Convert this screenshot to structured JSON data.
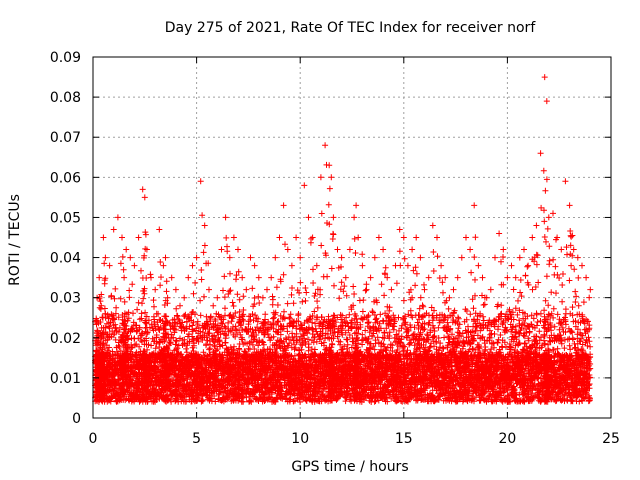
{
  "chart_data": {
    "type": "scatter",
    "title": "Day 275 of 2021, Rate Of TEC Index for receiver norf",
    "xlabel": "GPS time / hours",
    "ylabel": "ROTI / TECUs",
    "xlim": [
      0,
      25
    ],
    "ylim": [
      0,
      0.09
    ],
    "x_ticks": [
      0,
      5,
      10,
      15,
      20,
      25
    ],
    "x_tick_labels": [
      "0",
      "5",
      "10",
      "15",
      "20",
      "25"
    ],
    "y_ticks": [
      0,
      0.01,
      0.02,
      0.03,
      0.04,
      0.05,
      0.06,
      0.07,
      0.08,
      0.09
    ],
    "y_tick_labels": [
      "0",
      "0.01",
      "0.02",
      "0.03",
      "0.04",
      "0.05",
      "0.06",
      "0.07",
      "0.08",
      "0.09"
    ],
    "grid": true,
    "marker": "+",
    "color": "#ff0000",
    "series": [
      {
        "name": "ROTI",
        "description_note": "dense scatter of ROTI samples over 24 hours; representative points listed",
        "x": [
          0.1,
          0.2,
          0.3,
          0.4,
          0.5,
          0.6,
          0.8,
          1.0,
          1.2,
          1.4,
          1.5,
          1.6,
          1.8,
          2.0,
          2.2,
          2.4,
          2.5,
          2.6,
          2.8,
          3.0,
          3.2,
          3.4,
          3.5,
          3.6,
          3.8,
          4.0,
          4.2,
          4.4,
          4.6,
          4.8,
          5.0,
          5.2,
          5.4,
          5.6,
          5.8,
          6.0,
          6.2,
          6.4,
          6.6,
          6.8,
          7.0,
          7.2,
          7.4,
          7.6,
          7.8,
          8.0,
          8.2,
          8.4,
          8.6,
          8.8,
          9.0,
          9.2,
          9.4,
          9.6,
          9.8,
          10.0,
          10.2,
          10.4,
          10.6,
          10.8,
          11.0,
          11.2,
          11.4,
          11.5,
          11.6,
          11.8,
          12.0,
          12.2,
          12.4,
          12.6,
          12.7,
          12.8,
          13.0,
          13.2,
          13.4,
          13.6,
          13.8,
          14.0,
          14.2,
          14.4,
          14.6,
          14.8,
          15.0,
          15.2,
          15.4,
          15.6,
          15.8,
          16.0,
          16.2,
          16.4,
          16.6,
          16.8,
          17.0,
          17.2,
          17.4,
          17.6,
          17.8,
          18.0,
          18.2,
          18.4,
          18.6,
          18.8,
          19.0,
          19.2,
          19.4,
          19.6,
          19.8,
          20.0,
          20.2,
          20.4,
          20.6,
          20.8,
          21.0,
          21.2,
          21.4,
          21.6,
          21.8,
          21.9,
          22.0,
          22.2,
          22.4,
          22.6,
          22.8,
          23.0,
          23.2,
          23.4,
          23.6,
          23.8,
          24.0
        ],
        "y": [
          0.024,
          0.03,
          0.035,
          0.028,
          0.045,
          0.04,
          0.038,
          0.047,
          0.05,
          0.045,
          0.035,
          0.042,
          0.04,
          0.038,
          0.045,
          0.057,
          0.055,
          0.042,
          0.035,
          0.032,
          0.047,
          0.038,
          0.04,
          0.03,
          0.035,
          0.032,
          0.028,
          0.03,
          0.035,
          0.038,
          0.04,
          0.059,
          0.043,
          0.032,
          0.028,
          0.03,
          0.042,
          0.05,
          0.04,
          0.045,
          0.042,
          0.035,
          0.032,
          0.04,
          0.038,
          0.035,
          0.03,
          0.032,
          0.035,
          0.04,
          0.045,
          0.053,
          0.042,
          0.038,
          0.045,
          0.04,
          0.058,
          0.05,
          0.045,
          0.038,
          0.06,
          0.068,
          0.063,
          0.06,
          0.05,
          0.042,
          0.04,
          0.035,
          0.042,
          0.05,
          0.053,
          0.045,
          0.038,
          0.032,
          0.035,
          0.04,
          0.045,
          0.042,
          0.035,
          0.032,
          0.038,
          0.047,
          0.045,
          0.038,
          0.042,
          0.045,
          0.04,
          0.032,
          0.035,
          0.048,
          0.045,
          0.038,
          0.035,
          0.03,
          0.032,
          0.035,
          0.04,
          0.045,
          0.042,
          0.053,
          0.038,
          0.035,
          0.03,
          0.032,
          0.04,
          0.046,
          0.042,
          0.035,
          0.038,
          0.035,
          0.04,
          0.042,
          0.038,
          0.045,
          0.048,
          0.066,
          0.085,
          0.079,
          0.05,
          0.051,
          0.045,
          0.042,
          0.059,
          0.053,
          0.042,
          0.04,
          0.038,
          0.035,
          0.032
        ]
      }
    ]
  }
}
